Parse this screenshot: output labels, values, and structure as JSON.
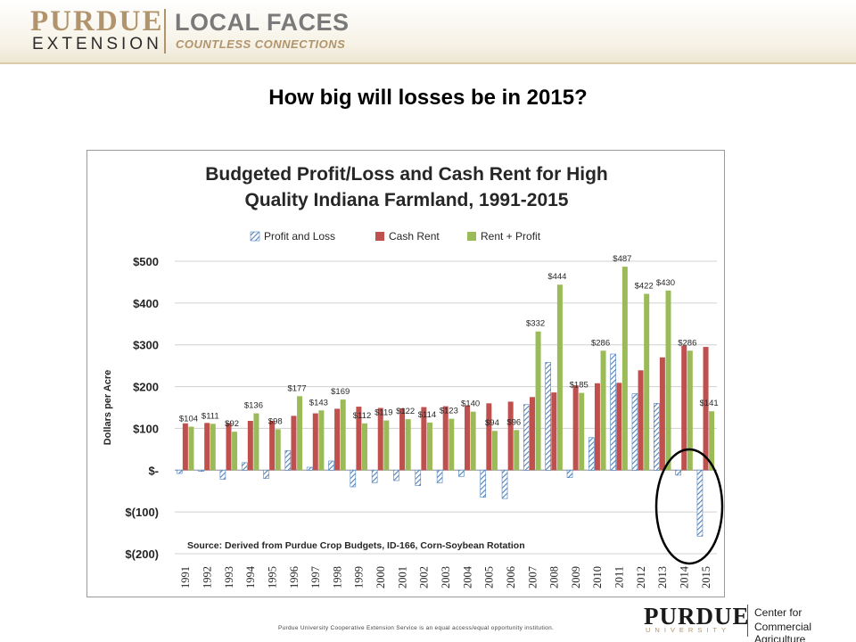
{
  "header": {
    "logo_purdue": "PURDUE",
    "logo_extension": "EXTENSION",
    "tagline_main": "LOCAL FACES",
    "tagline_sub": "COUNTLESS CONNECTIONS"
  },
  "slide_title": "How big will losses be in 2015?",
  "footer": {
    "note": "Purdue University Cooperative Extension Service is an equal access/equal opportunity institution.",
    "purdue": "PURDUE",
    "university": "UNIVERSITY",
    "center_line1": "Center for",
    "center_line2": "Commercial Agriculture"
  },
  "colors": {
    "profit_loss": "#4f81bd",
    "cash_rent": "#c0504d",
    "rent_plus_profit": "#9bbb59",
    "highlight_circle": "#000000"
  },
  "chart_data": {
    "type": "bar",
    "title": "Budgeted Profit/Loss and Cash Rent for High Quality Indiana Farmland, 1991-2015",
    "title_lines": [
      "Budgeted Profit/Loss and Cash Rent for High",
      "Quality Indiana Farmland, 1991-2015"
    ],
    "ylabel": "Dollars per Acre",
    "ylim": [
      -200,
      500
    ],
    "yticks": [
      500,
      400,
      300,
      200,
      100,
      0,
      -100,
      -200
    ],
    "ytick_labels": [
      "$500",
      "$400",
      "$300",
      "$200",
      "$100",
      "$-",
      "$(100)",
      "$(200)"
    ],
    "grid": true,
    "legend_placement": "top",
    "categories": [
      "1991",
      "1992",
      "1993",
      "1994",
      "1995",
      "1996",
      "1997",
      "1998",
      "1999",
      "2000",
      "2001",
      "2002",
      "2003",
      "2004",
      "2005",
      "2006",
      "2007",
      "2008",
      "2009",
      "2010",
      "2011",
      "2012",
      "2013",
      "2014",
      "2015"
    ],
    "series": [
      {
        "name": "Profit and Loss",
        "values": [
          -8,
          -3,
          -22,
          18,
          -20,
          47,
          7,
          22,
          -40,
          -30,
          -25,
          -37,
          -30,
          -15,
          -65,
          -68,
          157,
          258,
          -18,
          78,
          278,
          183,
          160,
          -12,
          -158
        ]
      },
      {
        "name": "Cash Rent",
        "values": [
          112,
          113,
          113,
          118,
          118,
          130,
          136,
          147,
          152,
          149,
          148,
          151,
          153,
          155,
          160,
          164,
          175,
          186,
          203,
          208,
          209,
          239,
          270,
          298,
          295
        ]
      },
      {
        "name": "Rent + Profit",
        "values": [
          104,
          111,
          92,
          136,
          98,
          177,
          143,
          169,
          112,
          119,
          122,
          114,
          123,
          140,
          94,
          96,
          332,
          444,
          185,
          286,
          487,
          422,
          430,
          286,
          141
        ]
      }
    ],
    "data_labels": [
      "$104",
      "$111",
      "$92",
      "$136",
      "$98",
      "$177",
      "$143",
      "$169",
      "$112",
      "$119",
      "$122",
      "$114",
      "$123",
      "$140",
      "$94",
      "$96",
      "$332",
      "$444",
      "$185",
      "$286",
      "$487",
      "$422",
      "$430",
      "$286",
      "$141"
    ],
    "annotation": "Source:  Derived from Purdue Crop Budgets, ID-166, Corn-Soybean Rotation"
  }
}
